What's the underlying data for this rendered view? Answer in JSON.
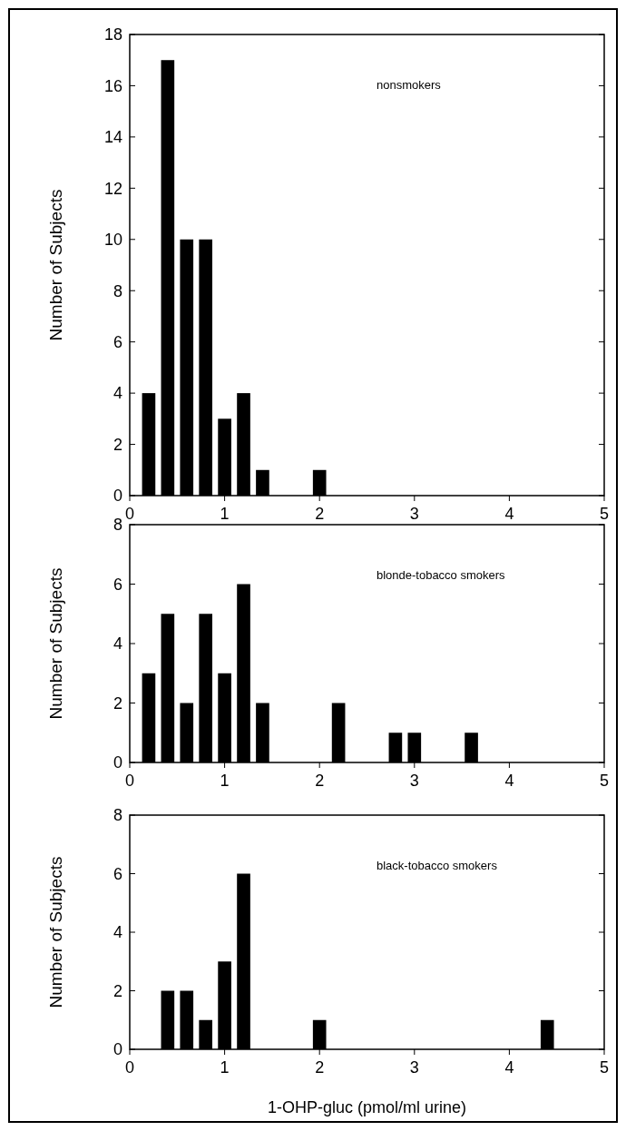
{
  "chart_data": [
    {
      "type": "bar",
      "x": [
        0.2,
        0.4,
        0.6,
        0.8,
        1.0,
        1.2,
        1.4,
        2.0
      ],
      "values": [
        4,
        17,
        10,
        10,
        3,
        4,
        1,
        1
      ],
      "color": "#000000",
      "ylabel": "Number of Subjects",
      "annotations": [
        "nonsmokers"
      ],
      "xlim": [
        0,
        5
      ],
      "xticks": [
        0,
        1,
        2,
        3,
        4,
        5
      ],
      "ylim": [
        0,
        18
      ],
      "yticks": [
        0,
        2,
        4,
        6,
        8,
        10,
        12,
        14,
        16,
        18
      ]
    },
    {
      "type": "bar",
      "x": [
        0.2,
        0.4,
        0.6,
        0.8,
        1.0,
        1.2,
        1.4,
        2.2,
        2.8,
        3.0,
        3.6
      ],
      "values": [
        3,
        5,
        2,
        5,
        3,
        6,
        2,
        2,
        1,
        1,
        1
      ],
      "color": "#000000",
      "ylabel": "Number of Subjects",
      "annotations": [
        "blonde-tobacco smokers"
      ],
      "xlim": [
        0,
        5
      ],
      "xticks": [
        0,
        1,
        2,
        3,
        4,
        5
      ],
      "ylim": [
        0,
        8
      ],
      "yticks": [
        0,
        2,
        4,
        6,
        8
      ]
    },
    {
      "type": "bar",
      "x": [
        0.4,
        0.6,
        0.8,
        1.0,
        1.2,
        2.0,
        4.4
      ],
      "values": [
        2,
        2,
        1,
        3,
        6,
        1,
        1
      ],
      "color": "#000000",
      "ylabel": "Number of Subjects",
      "xlabel": "1-OHP-gluc (pmol/ml urine)",
      "annotations": [
        "black-tobacco smokers"
      ],
      "xlim": [
        0,
        5
      ],
      "xticks": [
        0,
        1,
        2,
        3,
        4,
        5
      ],
      "ylim": [
        0,
        8
      ],
      "yticks": [
        0,
        2,
        4,
        6,
        8
      ]
    }
  ]
}
